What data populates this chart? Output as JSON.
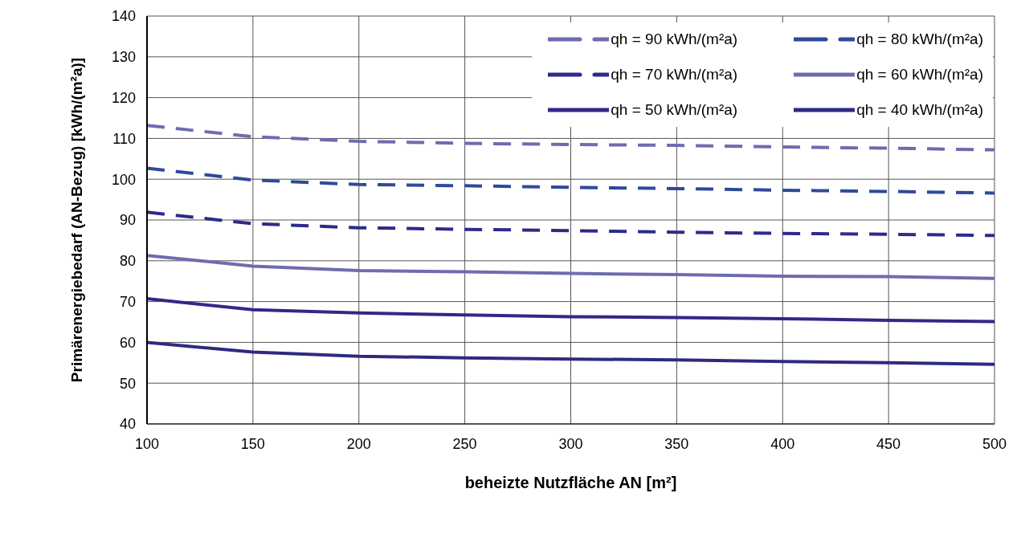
{
  "chart_data": {
    "type": "line",
    "xlabel": "beheizte Nutzfläche AN [m²]",
    "ylabel": "Primärenergiebedarf (AN-Bezug) [kWh/(m²a)]",
    "x": [
      100,
      150,
      200,
      250,
      300,
      350,
      400,
      450,
      500
    ],
    "xlim": [
      100,
      500
    ],
    "xticks": [
      100,
      150,
      200,
      250,
      300,
      350,
      400,
      450,
      500
    ],
    "ylim": [
      40,
      140
    ],
    "yticks": [
      40,
      50,
      60,
      70,
      80,
      90,
      100,
      110,
      120,
      130,
      140
    ],
    "grid": true,
    "legend": "top right",
    "marker": "none",
    "series": [
      {
        "name": "qh = 90 kWh/(m²a)",
        "color": "#6e6cb0",
        "line_style": "dashed",
        "values": [
          113.2,
          110.4,
          109.3,
          108.8,
          108.5,
          108.3,
          107.9,
          107.6,
          107.2
        ]
      },
      {
        "name": "qh = 80 kWh/(m²a)",
        "color": "#2e4a9a",
        "line_style": "dashed",
        "values": [
          102.7,
          99.8,
          98.7,
          98.4,
          98.0,
          97.7,
          97.3,
          97.0,
          96.6
        ]
      },
      {
        "name": "qh = 70 kWh/(m²a)",
        "color": "#2e2a8a",
        "line_style": "dashed",
        "values": [
          91.9,
          89.1,
          88.1,
          87.7,
          87.4,
          87.0,
          86.7,
          86.5,
          86.2
        ]
      },
      {
        "name": "qh = 60 kWh/(m²a)",
        "color": "#6e6cb0",
        "line_style": "solid",
        "values": [
          81.3,
          78.7,
          77.6,
          77.3,
          76.9,
          76.6,
          76.2,
          76.1,
          75.7
        ]
      },
      {
        "name": "qh = 50 kWh/(m²a)",
        "color": "#332788",
        "line_style": "solid",
        "values": [
          70.7,
          68.0,
          67.2,
          66.7,
          66.3,
          66.1,
          65.8,
          65.4,
          65.1
        ]
      },
      {
        "name": "qh = 40 kWh/(m²a)",
        "color": "#2e2a82",
        "line_style": "solid",
        "values": [
          60.0,
          57.6,
          56.6,
          56.2,
          55.9,
          55.7,
          55.3,
          55.0,
          54.6
        ]
      }
    ]
  }
}
